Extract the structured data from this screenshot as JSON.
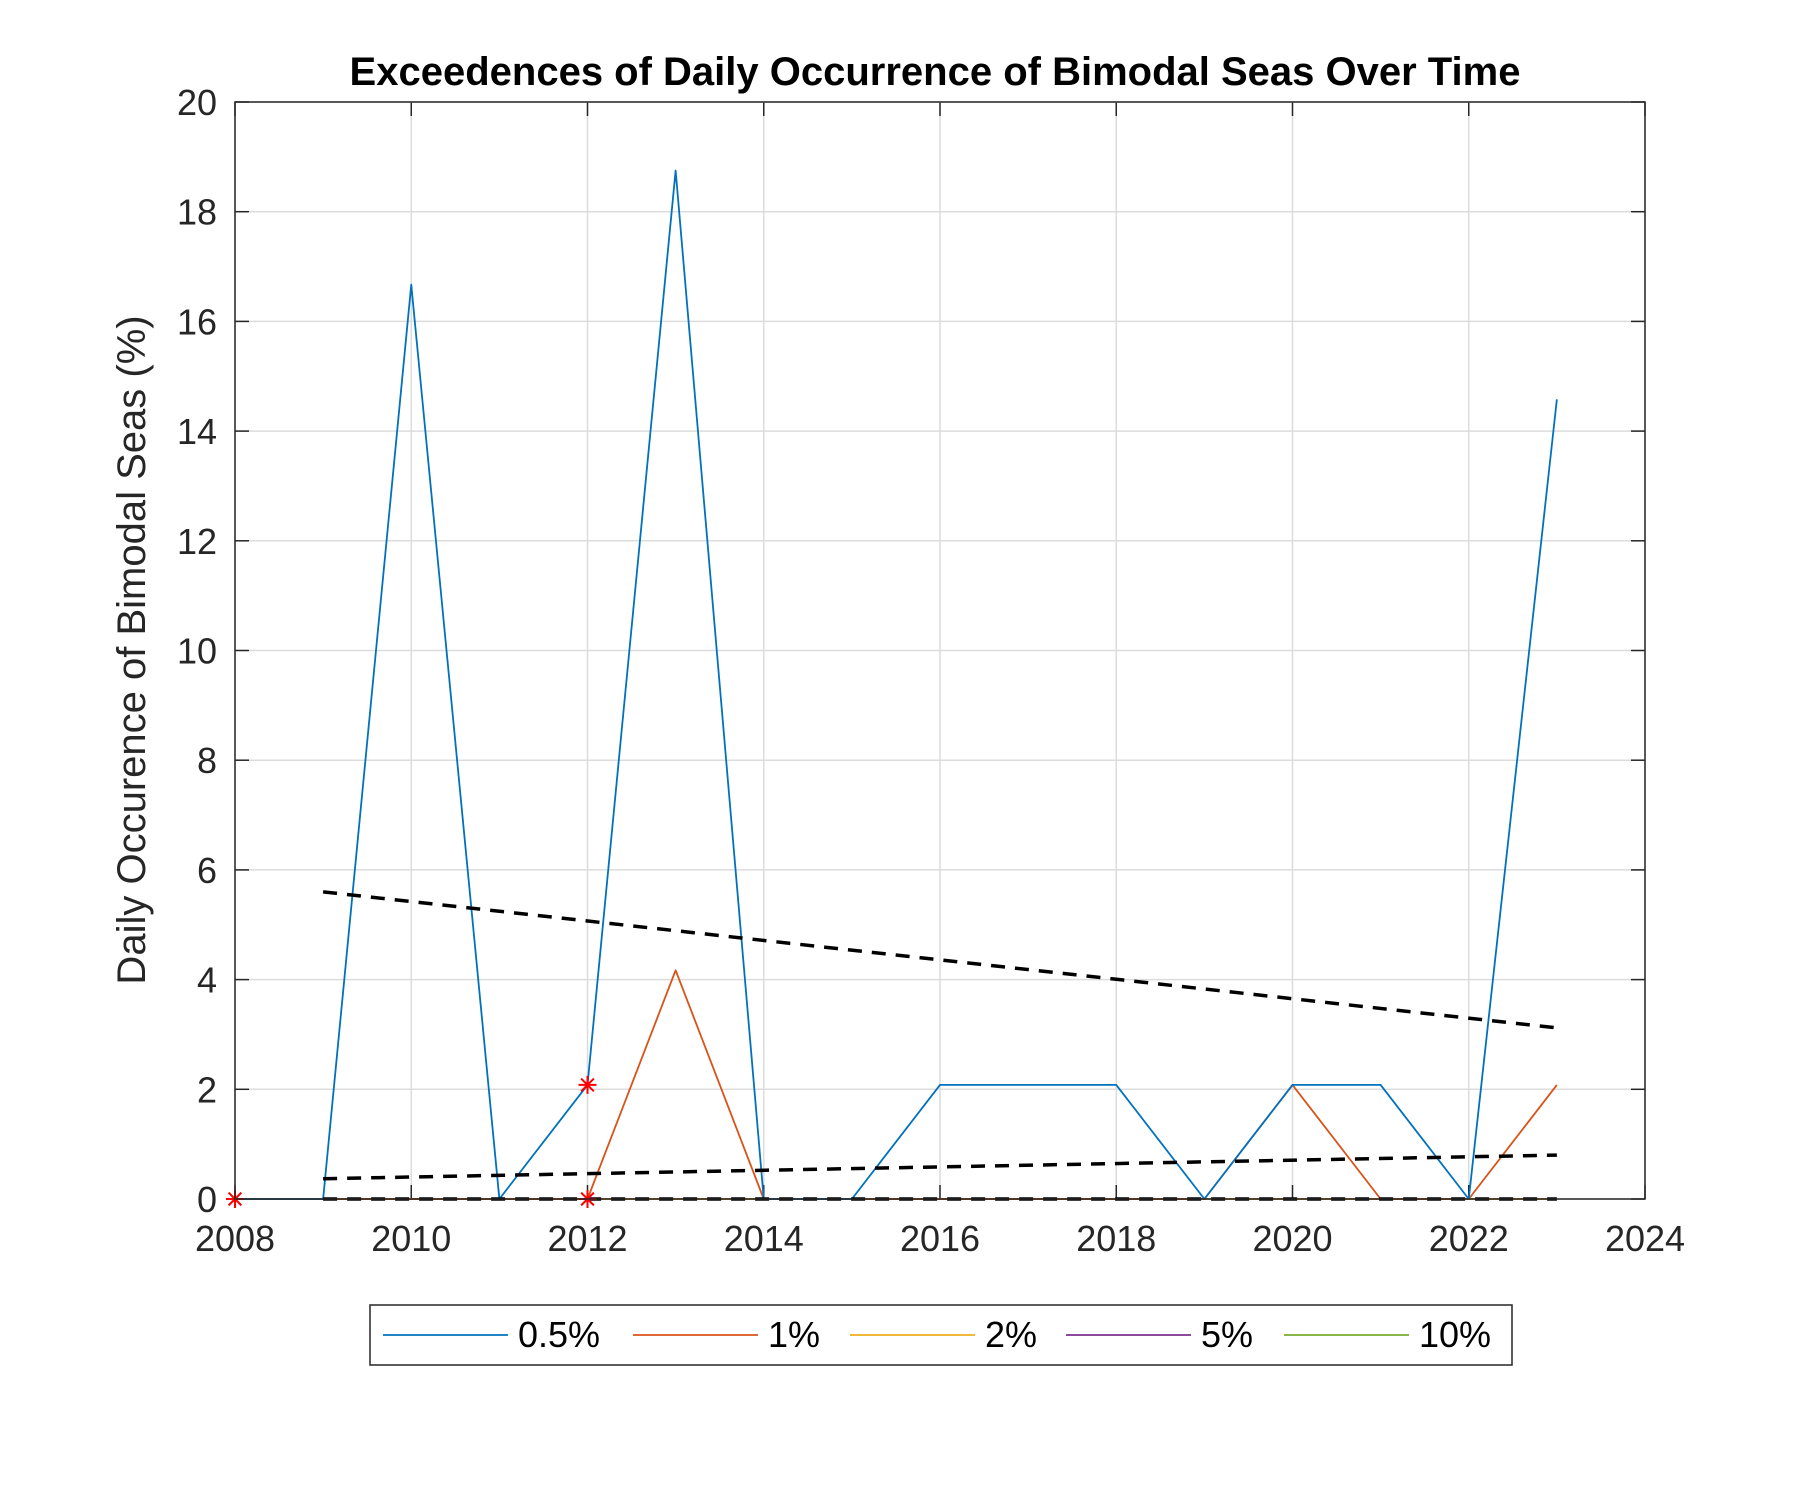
{
  "chart_data": {
    "type": "line",
    "title": "Exceedences of Daily Occurrence of Bimodal Seas Over Time",
    "xlabel": "",
    "ylabel": "Daily Occurence of Bimodal Seas (%)",
    "xlim": [
      2008,
      2024
    ],
    "ylim": [
      0,
      20
    ],
    "xticks": [
      "2008",
      "2010",
      "2012",
      "2014",
      "2016",
      "2018",
      "2020",
      "2022",
      "2024"
    ],
    "yticks": [
      "0",
      "2",
      "4",
      "6",
      "8",
      "10",
      "12",
      "14",
      "16",
      "18",
      "20"
    ],
    "grid": true,
    "legend_position": "bottom",
    "x": [
      2008,
      2009,
      2010,
      2011,
      2012,
      2013,
      2014,
      2015,
      2016,
      2017,
      2018,
      2019,
      2020,
      2021,
      2022,
      2023
    ],
    "series": [
      {
        "name": "0.5%",
        "color": "#0072BD",
        "values": [
          0,
          0,
          16.67,
          0,
          2.08,
          18.75,
          0,
          0,
          2.08,
          2.08,
          2.08,
          0,
          2.08,
          2.08,
          0,
          14.58
        ]
      },
      {
        "name": "1%",
        "color": "#D95319",
        "values": [
          0,
          0,
          0,
          0,
          0,
          4.17,
          0,
          0,
          0,
          0,
          0,
          0,
          2.08,
          0,
          0,
          2.08
        ]
      },
      {
        "name": "2%",
        "color": "#EDB120",
        "values": [
          0,
          0,
          0,
          0,
          0,
          0,
          0,
          0,
          0,
          0,
          0,
          0,
          0,
          0,
          0,
          0
        ]
      },
      {
        "name": "5%",
        "color": "#7E2F8E",
        "values": [
          0,
          0,
          0,
          0,
          0,
          0,
          0,
          0,
          0,
          0,
          0,
          0,
          0,
          0,
          0,
          0
        ]
      },
      {
        "name": "10%",
        "color": "#77AC30",
        "values": [
          0,
          0,
          0,
          0,
          0,
          0,
          0,
          0,
          0,
          0,
          0,
          0,
          0,
          0,
          0,
          0
        ]
      }
    ],
    "trend_lines": [
      {
        "x": [
          2009,
          2023
        ],
        "y": [
          5.6,
          3.12
        ],
        "style": "dashed",
        "color": "#000000"
      },
      {
        "x": [
          2009,
          2023
        ],
        "y": [
          0.37,
          0.8
        ],
        "style": "dashed",
        "color": "#000000"
      },
      {
        "x": [
          2009,
          2023
        ],
        "y": [
          0,
          0
        ],
        "style": "dashed",
        "color": "#000000"
      }
    ],
    "markers": [
      {
        "x": 2008,
        "y": 0,
        "symbol": "asterisk",
        "color": "#FF0000"
      },
      {
        "x": 2012,
        "y": 2.08,
        "symbol": "asterisk",
        "color": "#FF0000"
      },
      {
        "x": 2012,
        "y": 0,
        "symbol": "asterisk",
        "color": "#FF0000"
      }
    ]
  }
}
